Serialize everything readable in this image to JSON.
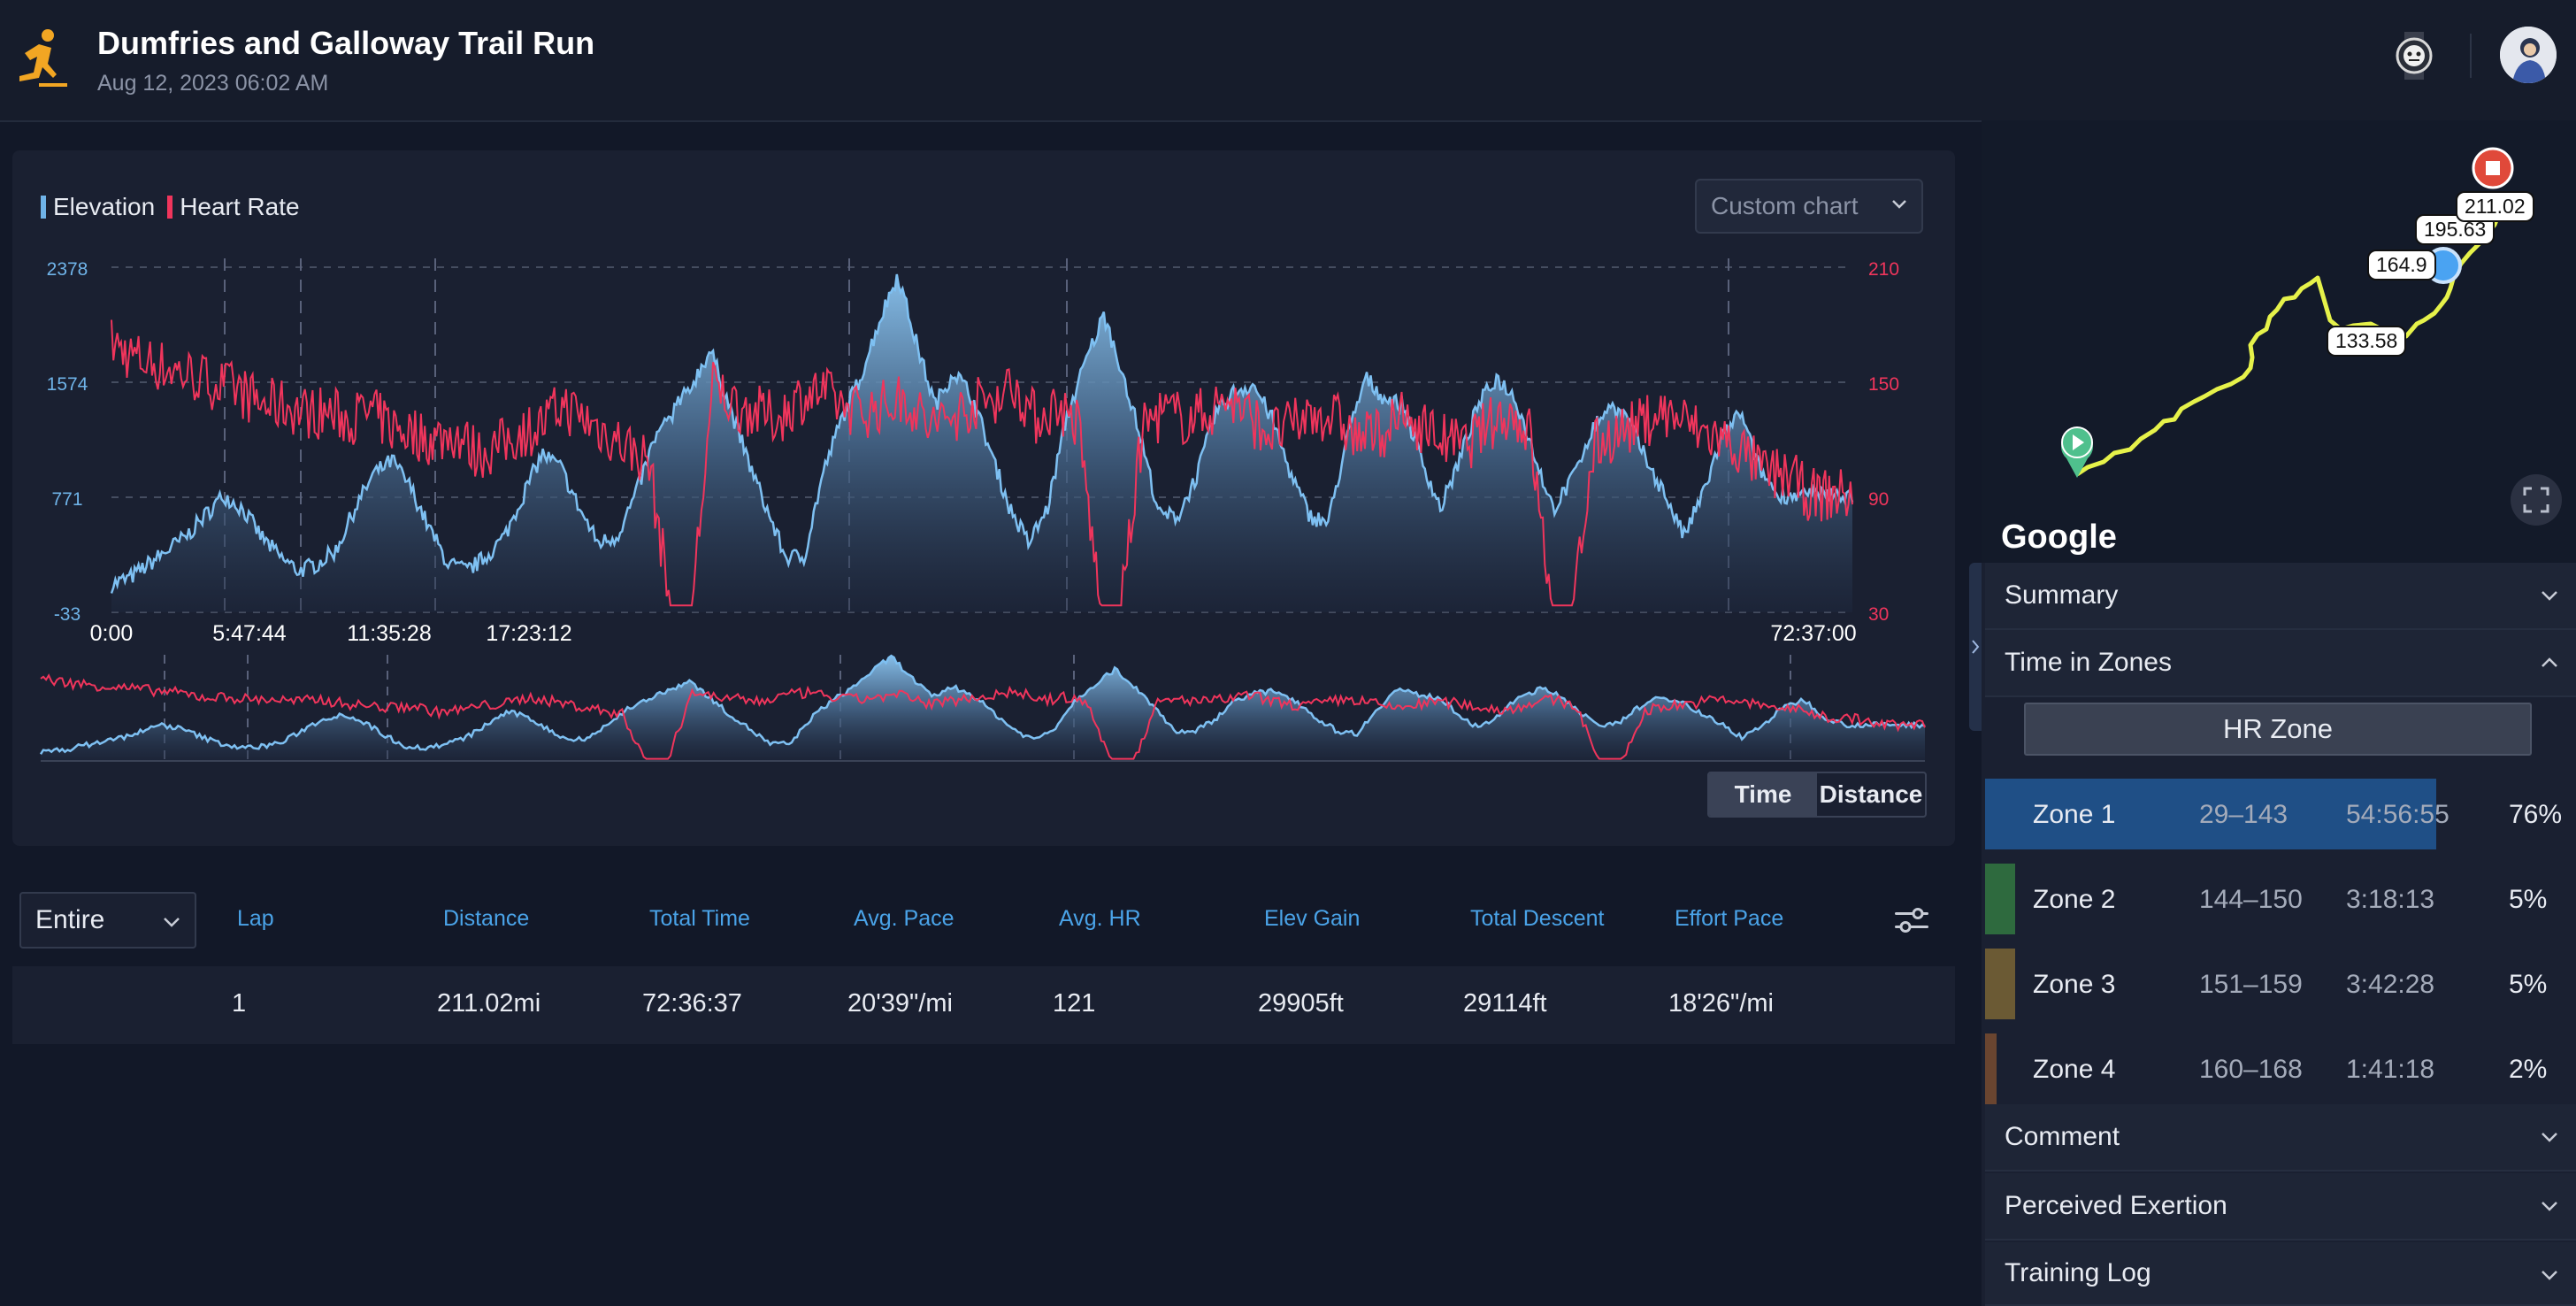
{
  "header": {
    "title": "Dumfries and Galloway Trail Run",
    "date": "Aug 12, 2023 06:02 AM",
    "icon": "running-person-icon"
  },
  "chart": {
    "custom_chart_label": "Custom chart",
    "toggle": {
      "time": "Time",
      "distance": "Distance",
      "active": "Time"
    }
  },
  "chart_data": {
    "type": "area",
    "series": [
      {
        "name": "Elevation",
        "color": "#6fb3e8",
        "axis": "left"
      },
      {
        "name": "Heart Rate",
        "color": "#f0355c",
        "axis": "right"
      }
    ],
    "left_axis_ticks": [
      "2378",
      "1574",
      "771",
      "-33"
    ],
    "left_ylim": [
      -33,
      2378
    ],
    "right_axis_ticks": [
      "210",
      "150",
      "90",
      "30"
    ],
    "right_ylim": [
      30,
      210
    ],
    "x_ticks": [
      "0:00",
      "5:47:44",
      "11:35:28",
      "17:23:12",
      "72:37:00"
    ],
    "elevation_profile": [
      0.08,
      0.1,
      0.14,
      0.18,
      0.22,
      0.28,
      0.34,
      0.3,
      0.22,
      0.16,
      0.12,
      0.14,
      0.18,
      0.3,
      0.4,
      0.44,
      0.36,
      0.24,
      0.14,
      0.12,
      0.16,
      0.22,
      0.34,
      0.46,
      0.42,
      0.3,
      0.2,
      0.22,
      0.34,
      0.5,
      0.58,
      0.66,
      0.76,
      0.6,
      0.44,
      0.3,
      0.16,
      0.16,
      0.4,
      0.56,
      0.68,
      0.84,
      0.98,
      0.78,
      0.6,
      0.7,
      0.62,
      0.46,
      0.3,
      0.2,
      0.3,
      0.56,
      0.72,
      0.86,
      0.7,
      0.5,
      0.28,
      0.28,
      0.4,
      0.58,
      0.64,
      0.66,
      0.56,
      0.4,
      0.28,
      0.26,
      0.5,
      0.68,
      0.62,
      0.6,
      0.44,
      0.3,
      0.44,
      0.6,
      0.68,
      0.62,
      0.46,
      0.3,
      0.38,
      0.52,
      0.6,
      0.56,
      0.44,
      0.34,
      0.22,
      0.34,
      0.5,
      0.58,
      0.42,
      0.34,
      0.34,
      0.34,
      0.34,
      0.34
    ],
    "heart_rate_profile": [
      0.78,
      0.74,
      0.72,
      0.7,
      0.68,
      0.66,
      0.64,
      0.6,
      0.6,
      0.58,
      0.58,
      0.56,
      0.58,
      0.54,
      0.52,
      0.5,
      0.52,
      0.46,
      0.48,
      0.52,
      0.54,
      0.6,
      0.56,
      0.52,
      0.48,
      0.44,
      0.02,
      0.02,
      0.66,
      0.6,
      0.58,
      0.56,
      0.62,
      0.64,
      0.6,
      0.58,
      0.6,
      0.62,
      0.54,
      0.56,
      0.6,
      0.62,
      0.66,
      0.56,
      0.6,
      0.54,
      0.02,
      0.02,
      0.54,
      0.58,
      0.56,
      0.58,
      0.62,
      0.56,
      0.52,
      0.54,
      0.58,
      0.56,
      0.5,
      0.52,
      0.56,
      0.54,
      0.5,
      0.48,
      0.54,
      0.58,
      0.52,
      0.02,
      0.02,
      0.48,
      0.52,
      0.54,
      0.58,
      0.56,
      0.52,
      0.5,
      0.46,
      0.4,
      0.4,
      0.34,
      0.34,
      0.34
    ]
  },
  "laps": {
    "select_value": "Entire",
    "columns": [
      "Lap",
      "Distance",
      "Total Time",
      "Avg. Pace",
      "Avg. HR",
      "Elev Gain",
      "Total Descent",
      "Effort Pace"
    ],
    "rows": [
      [
        "1",
        "211.02mi",
        "72:36:37",
        "20'39\"/mi",
        "121",
        "29905ft",
        "29114ft",
        "18'26\"/mi"
      ]
    ]
  },
  "map": {
    "brand": "Google",
    "markers": [
      "133.58",
      "164.9",
      "195.63",
      "211.02"
    ],
    "route_color": "#e6f24a"
  },
  "panel": {
    "summary": "Summary",
    "time_in_zones": "Time in Zones",
    "hr_zone_button": "HR Zone",
    "zones": [
      {
        "name": "Zone 1",
        "range": "29–143",
        "time": "54:56:55",
        "pct": "76%",
        "fraction": 0.76,
        "color": "#1f4f86"
      },
      {
        "name": "Zone 2",
        "range": "144–150",
        "time": "3:18:13",
        "pct": "5%",
        "fraction": 0.05,
        "color": "#2e6a3e"
      },
      {
        "name": "Zone 3",
        "range": "151–159",
        "time": "3:42:28",
        "pct": "5%",
        "fraction": 0.05,
        "color": "#6b5a34"
      },
      {
        "name": "Zone 4",
        "range": "160–168",
        "time": "1:41:18",
        "pct": "2%",
        "fraction": 0.02,
        "color": "#6a4530"
      }
    ],
    "comment": "Comment",
    "perceived_exertion": "Perceived Exertion",
    "training_log": "Training Log"
  }
}
